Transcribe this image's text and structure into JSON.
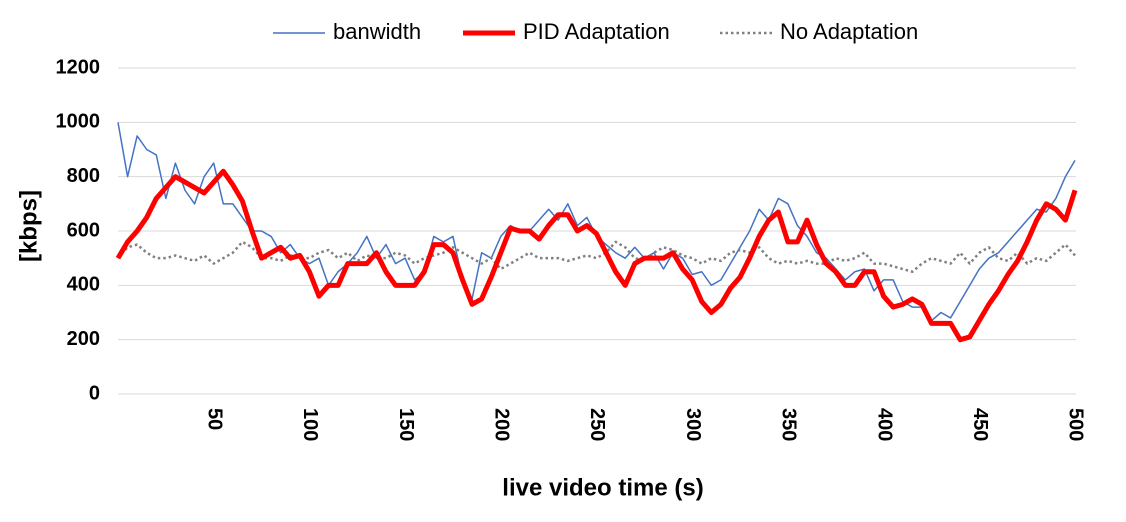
{
  "chart_data": {
    "type": "line",
    "x_label": "live video time (s)",
    "y_label": "[kbps]",
    "x": [
      0,
      5,
      10,
      15,
      20,
      25,
      30,
      35,
      40,
      45,
      50,
      55,
      60,
      65,
      70,
      75,
      80,
      85,
      90,
      95,
      100,
      105,
      110,
      115,
      120,
      125,
      130,
      135,
      140,
      145,
      150,
      155,
      160,
      165,
      170,
      175,
      180,
      185,
      190,
      195,
      200,
      205,
      210,
      215,
      220,
      225,
      230,
      235,
      240,
      245,
      250,
      255,
      260,
      265,
      270,
      275,
      280,
      285,
      290,
      295,
      300,
      305,
      310,
      315,
      320,
      325,
      330,
      335,
      340,
      345,
      350,
      355,
      360,
      365,
      370,
      375,
      380,
      385,
      390,
      395,
      400,
      405,
      410,
      415,
      420,
      425,
      430,
      435,
      440,
      445,
      450,
      455,
      460,
      465,
      470,
      475,
      480,
      485,
      490,
      495,
      500
    ],
    "series": [
      {
        "name": "banwidth",
        "color": "#4472c4",
        "style": "solid",
        "width": 1.5,
        "values": [
          1000,
          800,
          950,
          900,
          880,
          720,
          850,
          750,
          700,
          800,
          850,
          700,
          700,
          650,
          600,
          600,
          580,
          520,
          550,
          500,
          480,
          500,
          400,
          450,
          480,
          520,
          580,
          500,
          550,
          480,
          500,
          420,
          450,
          580,
          560,
          580,
          420,
          350,
          520,
          500,
          580,
          620,
          600,
          600,
          640,
          680,
          640,
          700,
          620,
          650,
          580,
          550,
          520,
          500,
          540,
          500,
          520,
          460,
          520,
          500,
          440,
          450,
          400,
          420,
          480,
          540,
          600,
          680,
          640,
          720,
          700,
          620,
          580,
          520,
          500,
          460,
          420,
          450,
          460,
          380,
          420,
          420,
          340,
          320,
          320,
          270,
          300,
          280,
          340,
          400,
          460,
          500,
          520,
          560,
          600,
          640,
          680,
          670,
          720,
          800,
          860
        ]
      },
      {
        "name": "PID Adaptation",
        "color": "#ff0000",
        "style": "solid",
        "width": 5,
        "values": [
          500,
          560,
          600,
          650,
          720,
          760,
          800,
          780,
          760,
          740,
          780,
          820,
          770,
          710,
          600,
          500,
          520,
          540,
          500,
          510,
          450,
          360,
          400,
          400,
          480,
          480,
          480,
          520,
          450,
          400,
          400,
          400,
          450,
          550,
          550,
          520,
          420,
          330,
          350,
          430,
          520,
          610,
          600,
          600,
          570,
          620,
          660,
          660,
          600,
          620,
          590,
          520,
          450,
          400,
          480,
          500,
          500,
          500,
          520,
          460,
          420,
          340,
          300,
          330,
          390,
          430,
          500,
          580,
          640,
          670,
          560,
          560,
          640,
          550,
          480,
          450,
          400,
          400,
          450,
          450,
          360,
          320,
          330,
          350,
          330,
          260,
          260,
          260,
          200,
          210,
          270,
          330,
          380,
          440,
          490,
          560,
          640,
          700,
          680,
          640,
          750
        ]
      },
      {
        "name": "No Adaptation",
        "color": "#808080",
        "style": "dotted",
        "width": 2.5,
        "values": [
          500,
          540,
          550,
          520,
          500,
          500,
          510,
          500,
          490,
          510,
          480,
          500,
          520,
          560,
          540,
          500,
          500,
          490,
          510,
          500,
          500,
          520,
          530,
          500,
          520,
          490,
          510,
          500,
          500,
          520,
          510,
          480,
          500,
          510,
          520,
          540,
          520,
          500,
          480,
          500,
          460,
          480,
          500,
          520,
          500,
          500,
          500,
          490,
          500,
          510,
          500,
          520,
          560,
          540,
          500,
          490,
          520,
          540,
          530,
          510,
          500,
          480,
          500,
          490,
          520,
          530,
          520,
          540,
          500,
          480,
          490,
          480,
          490,
          480,
          480,
          500,
          490,
          500,
          520,
          480,
          480,
          470,
          460,
          450,
          480,
          500,
          490,
          480,
          520,
          480,
          520,
          540,
          500,
          490,
          520,
          480,
          500,
          490,
          520,
          550,
          510
        ]
      }
    ],
    "xlim": [
      0,
      500
    ],
    "xticks": [
      50,
      100,
      150,
      200,
      250,
      300,
      350,
      400,
      450,
      500
    ],
    "ylim": [
      0,
      1200
    ],
    "yticks": [
      0,
      200,
      400,
      600,
      800,
      1000,
      1200
    ],
    "grid": true,
    "legend": "top"
  }
}
